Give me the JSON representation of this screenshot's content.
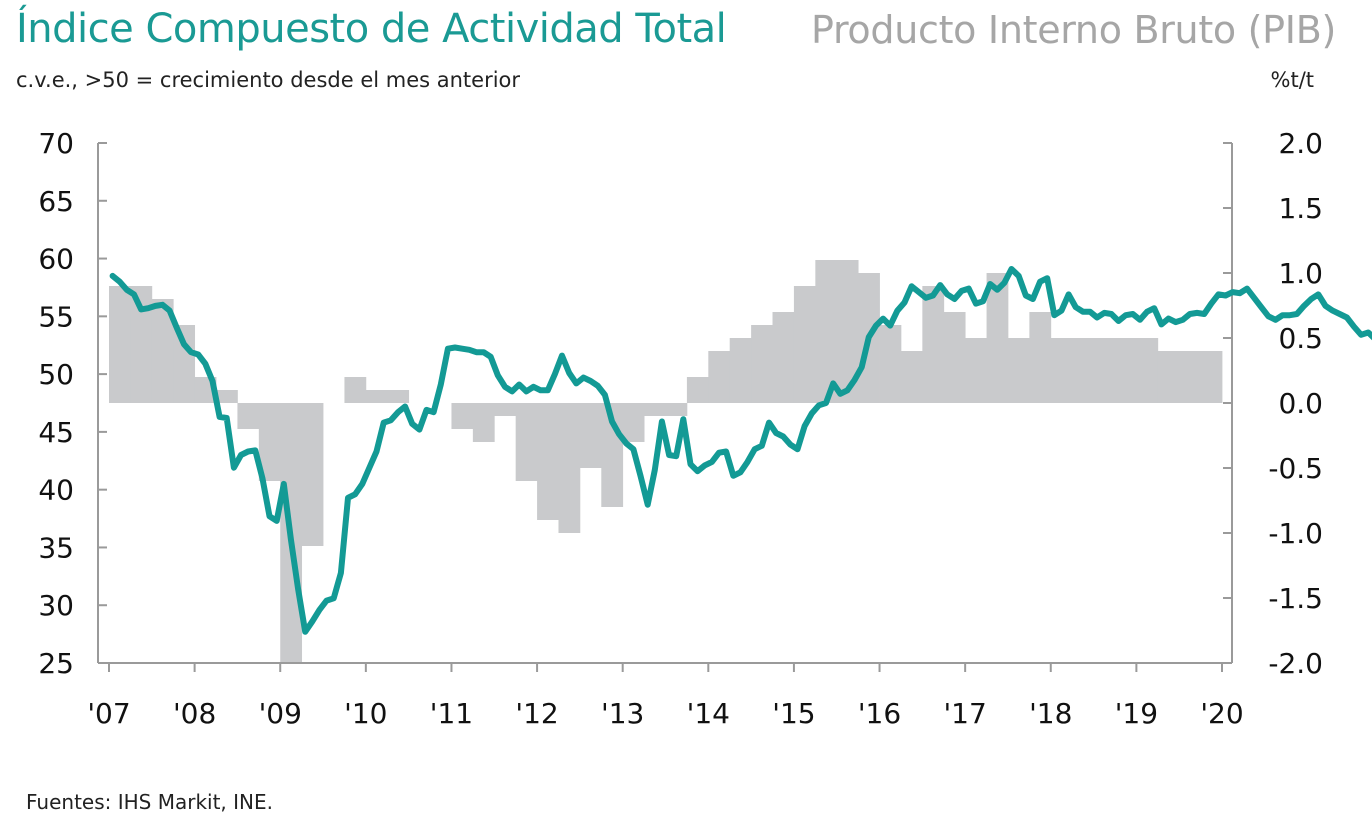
{
  "header": {
    "left_title": "Índice Compuesto de Actividad Total",
    "right_title": "Producto Interno Bruto (PIB)",
    "subtitle": "c.v.e., >50 = crecimiento desde el mes anterior",
    "right_unit": "%t/t"
  },
  "footer": {
    "source": "Fuentes: IHS Markit, INE."
  },
  "colors": {
    "line": "#139a95",
    "bars": "#c9cacc",
    "axis": "#9a9a9a"
  },
  "chart_data": {
    "type": "line",
    "x_tick_labels": [
      "'07",
      "'08",
      "'09",
      "'10",
      "'11",
      "'12",
      "'13",
      "'14",
      "'15",
      "'16",
      "'17",
      "'18",
      "'19",
      "'20"
    ],
    "y_left": {
      "range": [
        25,
        70
      ],
      "ticks": [
        "70",
        "65",
        "60",
        "55",
        "50",
        "45",
        "40",
        "35",
        "30",
        "25"
      ]
    },
    "y_right": {
      "range": [
        -2.0,
        2.0
      ],
      "ticks": [
        "2.0",
        "1.5",
        "1.0",
        "0.5",
        "0.0",
        "-0.5",
        "-1.0",
        "-1.5",
        "-2.0"
      ]
    },
    "series": [
      {
        "name": "Índice Compuesto de Actividad Total",
        "axis": "left",
        "type": "line",
        "start": "2007-01",
        "frequency": "monthly",
        "values": [
          58.5,
          58.0,
          57.3,
          56.9,
          55.6,
          55.7,
          55.9,
          56.0,
          55.5,
          54.0,
          52.6,
          51.9,
          51.7,
          50.9,
          49.4,
          46.3,
          46.2,
          41.9,
          43.0,
          43.3,
          43.4,
          41.0,
          37.7,
          37.3,
          40.5,
          35.7,
          31.4,
          27.7,
          28.6,
          29.6,
          30.4,
          30.6,
          32.8,
          39.3,
          39.6,
          40.5,
          41.9,
          43.3,
          45.8,
          46.0,
          46.7,
          47.2,
          45.7,
          45.2,
          46.9,
          46.7,
          49.1,
          52.2,
          52.3,
          52.2,
          52.1,
          51.9,
          51.9,
          51.5,
          49.9,
          48.9,
          48.5,
          49.1,
          48.5,
          48.9,
          48.6,
          48.6,
          50.0,
          51.6,
          50.1,
          49.2,
          49.7,
          49.4,
          49.0,
          48.2,
          45.9,
          44.8,
          44.0,
          43.5,
          41.2,
          38.7,
          41.7,
          45.9,
          43.0,
          42.9,
          46.1,
          42.2,
          41.6,
          42.1,
          42.4,
          43.2,
          43.3,
          41.2,
          41.5,
          42.4,
          43.5,
          43.8,
          45.8,
          44.9,
          44.6,
          43.9,
          43.5,
          45.5,
          46.6,
          47.3,
          47.5,
          49.2,
          48.3,
          48.6,
          49.5,
          50.6,
          53.2,
          54.2,
          54.8,
          54.2,
          55.5,
          56.2,
          57.6,
          57.1,
          56.6,
          56.8,
          57.7,
          56.9,
          56.5,
          57.2,
          57.4,
          56.1,
          56.3,
          57.8,
          57.3,
          57.9,
          59.1,
          58.5,
          56.8,
          56.5,
          58.0,
          58.3,
          55.1,
          55.5,
          56.9,
          55.8,
          55.4,
          55.4,
          54.9,
          55.3,
          55.2,
          54.6,
          55.1,
          55.2,
          54.7,
          55.4,
          55.7,
          54.3,
          54.8,
          54.5,
          54.7,
          55.2,
          55.3,
          55.2,
          56.1,
          56.9,
          56.8,
          57.1,
          57.0,
          57.4,
          56.6,
          55.8,
          55.0,
          54.7,
          55.1,
          55.1,
          55.2,
          55.9,
          56.5,
          56.9,
          55.9,
          55.5,
          55.2,
          54.9,
          54.1,
          53.4,
          53.6,
          53.0,
          53.8,
          53.7,
          53.4,
          53.9,
          53.6,
          55.4,
          52.7,
          52.3,
          51.7,
          52.2,
          51.8,
          52.2,
          52.0,
          52.7,
          52.1,
          51.5,
          51.9,
          51.9,
          52.7,
          51.5
        ]
      },
      {
        "name": "Producto Interno Bruto (PIB)",
        "axis": "right",
        "type": "bar",
        "frequency": "quarterly",
        "x": [
          "2007-Q1",
          "2007-Q2",
          "2007-Q3",
          "2007-Q4",
          "2008-Q1",
          "2008-Q2",
          "2008-Q3",
          "2008-Q4",
          "2009-Q1",
          "2009-Q2",
          "2009-Q3",
          "2009-Q4",
          "2010-Q1",
          "2010-Q2",
          "2010-Q3",
          "2010-Q4",
          "2011-Q1",
          "2011-Q2",
          "2011-Q3",
          "2011-Q4",
          "2012-Q1",
          "2012-Q2",
          "2012-Q3",
          "2012-Q4",
          "2013-Q1",
          "2013-Q2",
          "2013-Q3",
          "2013-Q4",
          "2014-Q1",
          "2014-Q2",
          "2014-Q3",
          "2014-Q4",
          "2015-Q1",
          "2015-Q2",
          "2015-Q3",
          "2015-Q4",
          "2016-Q1",
          "2016-Q2",
          "2016-Q3",
          "2016-Q4",
          "2017-Q1",
          "2017-Q2",
          "2017-Q3",
          "2017-Q4",
          "2018-Q1",
          "2018-Q2",
          "2018-Q3",
          "2018-Q4",
          "2019-Q1",
          "2019-Q2",
          "2019-Q3",
          "2019-Q4"
        ],
        "values": [
          0.9,
          0.9,
          0.8,
          0.6,
          0.2,
          0.1,
          -0.2,
          -0.6,
          -2.0,
          -1.1,
          0.0,
          0.2,
          0.1,
          0.1,
          0.0,
          0.0,
          -0.2,
          -0.3,
          -0.1,
          -0.6,
          -0.9,
          -1.0,
          -0.5,
          -0.8,
          -0.3,
          -0.1,
          -0.1,
          0.2,
          0.4,
          0.5,
          0.6,
          0.7,
          0.9,
          1.1,
          1.1,
          1.0,
          0.6,
          0.4,
          0.9,
          0.7,
          0.5,
          1.0,
          0.5,
          0.7,
          0.5,
          0.5,
          0.5,
          0.5,
          0.5,
          0.4,
          0.4,
          0.4
        ]
      }
    ],
    "legend": "none",
    "grid": false
  }
}
